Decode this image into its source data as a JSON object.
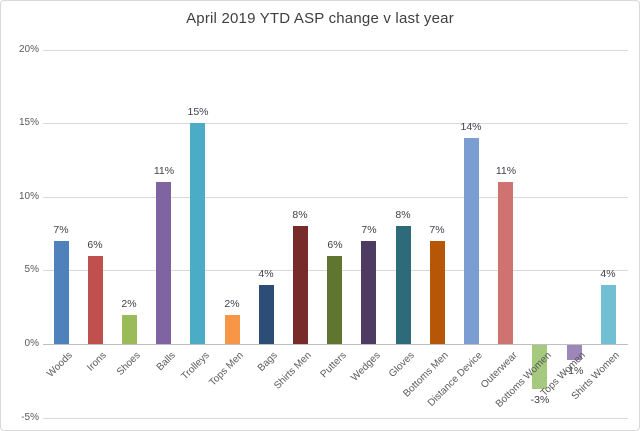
{
  "title": "April 2019 YTD ASP change v last year",
  "chart_data": {
    "type": "bar",
    "title": "April 2019 YTD ASP change v last year",
    "xlabel": "",
    "ylabel": "",
    "ylim": [
      -5,
      20
    ],
    "grid": true,
    "legend": false,
    "categories": [
      "Woods",
      "Irons",
      "Shoes",
      "Balls",
      "Trolleys",
      "Tops Men",
      "Bags",
      "Shirts Men",
      "Putters",
      "Wedges",
      "Gloves",
      "Bottoms Men",
      "Distance Device",
      "Outerwear",
      "Bottoms Women",
      "Tops Women",
      "Shirts Women"
    ],
    "values": [
      7,
      6,
      2,
      11,
      15,
      2,
      4,
      8,
      6,
      7,
      8,
      7,
      14,
      11,
      -3,
      -1,
      4
    ],
    "value_labels": [
      "7%",
      "6%",
      "2%",
      "11%",
      "15%",
      "2%",
      "4%",
      "8%",
      "6%",
      "7%",
      "8%",
      "7%",
      "14%",
      "11%",
      "-3%",
      "-1%",
      "4%"
    ],
    "bar_colors": [
      "#4F81BD",
      "#C0504D",
      "#9BBB59",
      "#8064A2",
      "#4BACC6",
      "#F79646",
      "#2C4D75",
      "#772C2A",
      "#5F7530",
      "#4D3B62",
      "#2D6B7B",
      "#B65708",
      "#7C9DD1",
      "#CE7370",
      "#A5C97E",
      "#9D87B8",
      "#71BFD3"
    ],
    "yticks": [
      {
        "value": 20,
        "label": "20%"
      },
      {
        "value": 15,
        "label": "15%"
      },
      {
        "value": 10,
        "label": "10%"
      },
      {
        "value": 5,
        "label": "5%"
      },
      {
        "value": 0,
        "label": "0%"
      },
      {
        "value": -5,
        "label": "-5%"
      }
    ]
  },
  "colors": {
    "background": "#FFFFFF",
    "border": "#D8D8D8",
    "gridline": "#D9D9D9",
    "zero_line": "#BFBFBF",
    "axis_text": "#595959",
    "value_label_text": "#3F4148",
    "title_text": "#404040"
  }
}
